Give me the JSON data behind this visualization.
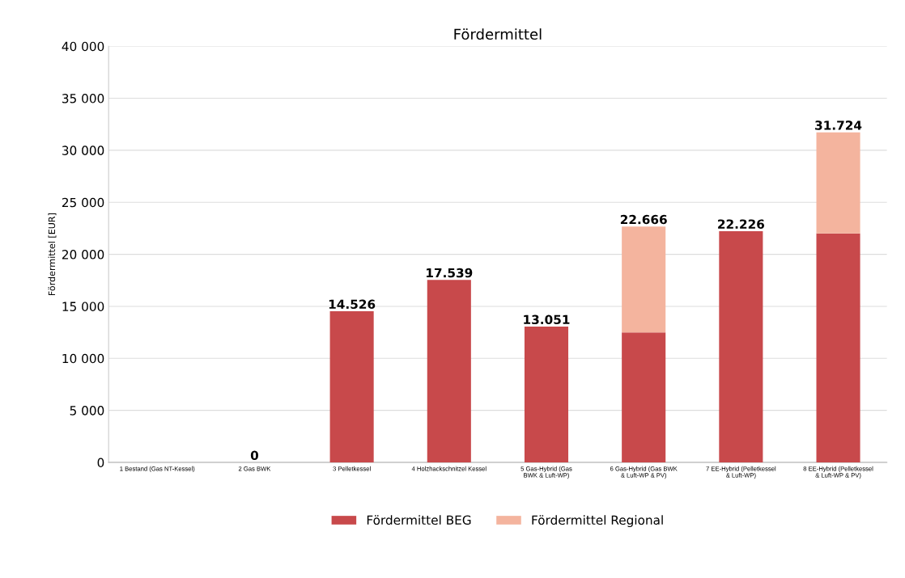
{
  "chart_data": {
    "type": "bar",
    "title": "Fördermittel",
    "ylabel": "Fördermittel [EUR]",
    "stacked": true,
    "categories": [
      "1 Bestand (Gas NT-Kessel)",
      "2 Gas BWK",
      "3 Pelletkessel",
      "4 Holzhackschnitzel Kessel",
      "5 Gas-Hybrid (Gas BWK & Luft-WP)",
      "6 Gas-Hybrid (Gas BWK & Luft-WP & PV)",
      "7 EE-Hybrid (Pelletkessel & Luft-WP)",
      "8 EE-Hybrid (Pelletkessel & Luft-WP & PV)"
    ],
    "series": [
      {
        "name": "Fördermittel BEG",
        "color": "#c8494b",
        "values": [
          0,
          0,
          14526,
          17539,
          13051,
          12500,
          22226,
          22000
        ]
      },
      {
        "name": "Fördermittel Regional",
        "color": "#f4b49e",
        "values": [
          0,
          0,
          0,
          0,
          0,
          10166,
          0,
          9724
        ]
      }
    ],
    "totals": [
      null,
      "0",
      "14.526",
      "17.539",
      "13.051",
      "22.666",
      "22.226",
      "31.724"
    ],
    "ylim": [
      0,
      40000
    ],
    "yticks": [
      0,
      {
        "value": 5000,
        "label": "5 000"
      },
      {
        "value": 10000,
        "label": "10 000"
      },
      {
        "value": 15000,
        "label": "15 000"
      },
      {
        "value": 20000,
        "label": "20 000"
      },
      {
        "value": 25000,
        "label": "25 000"
      },
      {
        "value": 30000,
        "label": "30 000"
      },
      {
        "value": 35000,
        "label": "35 000"
      },
      {
        "value": 40000,
        "label": "40 000"
      }
    ],
    "grid": "y",
    "legend": "bottom"
  }
}
